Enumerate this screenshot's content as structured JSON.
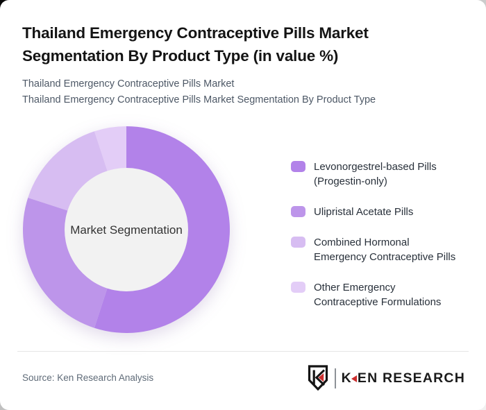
{
  "header": {
    "title": "Thailand Emergency Contraceptive Pills Market Segmentation By Product Type (in value %)",
    "subtitle_line1": "Thailand Emergency Contraceptive Pills Market",
    "subtitle_line2": "Thailand Emergency Contraceptive Pills Market Segmentation By Product Type"
  },
  "chart_data": {
    "type": "pie",
    "variant": "donut",
    "title": "Thailand Emergency Contraceptive Pills Market Segmentation By Product Type (in value %)",
    "center_label": "Market Segmentation",
    "categories": [
      "Levonorgestrel-based Pills (Progestin-only)",
      "Ulipristal Acetate Pills",
      "Combined Hormonal Emergency Contraceptive Pills",
      "Other Emergency Contraceptive Formulations"
    ],
    "values": [
      55,
      25,
      15,
      5
    ],
    "unit": "% of market value (estimated from arc angles, no data labels shown)",
    "colors": [
      "#b282e9",
      "#bd95ea",
      "#d7bdf2",
      "#e3cdf7"
    ],
    "start_angle_deg": 0,
    "direction": "clockwise",
    "inner_circle_color": "#f2f2f2",
    "legend_position": "right",
    "data_labels": false
  },
  "legend": {
    "items": [
      {
        "lines": [
          "Levonorgestrel-based Pills",
          "(Progestin-only)"
        ]
      },
      {
        "lines": [
          "Ulipristal Acetate Pills"
        ]
      },
      {
        "lines": [
          "Combined Hormonal",
          "Emergency Contraceptive Pills"
        ]
      },
      {
        "lines": [
          "Other Emergency",
          "Contraceptive Formulations"
        ]
      }
    ]
  },
  "footer": {
    "source": "Source: Ken Research Analysis",
    "logo": {
      "brand": "KEN RESEARCH",
      "wordmark_k": "K",
      "wordmark_rest": "EN RESEARCH",
      "accent_color": "#cc2e2e",
      "ink_color": "#141414"
    }
  }
}
